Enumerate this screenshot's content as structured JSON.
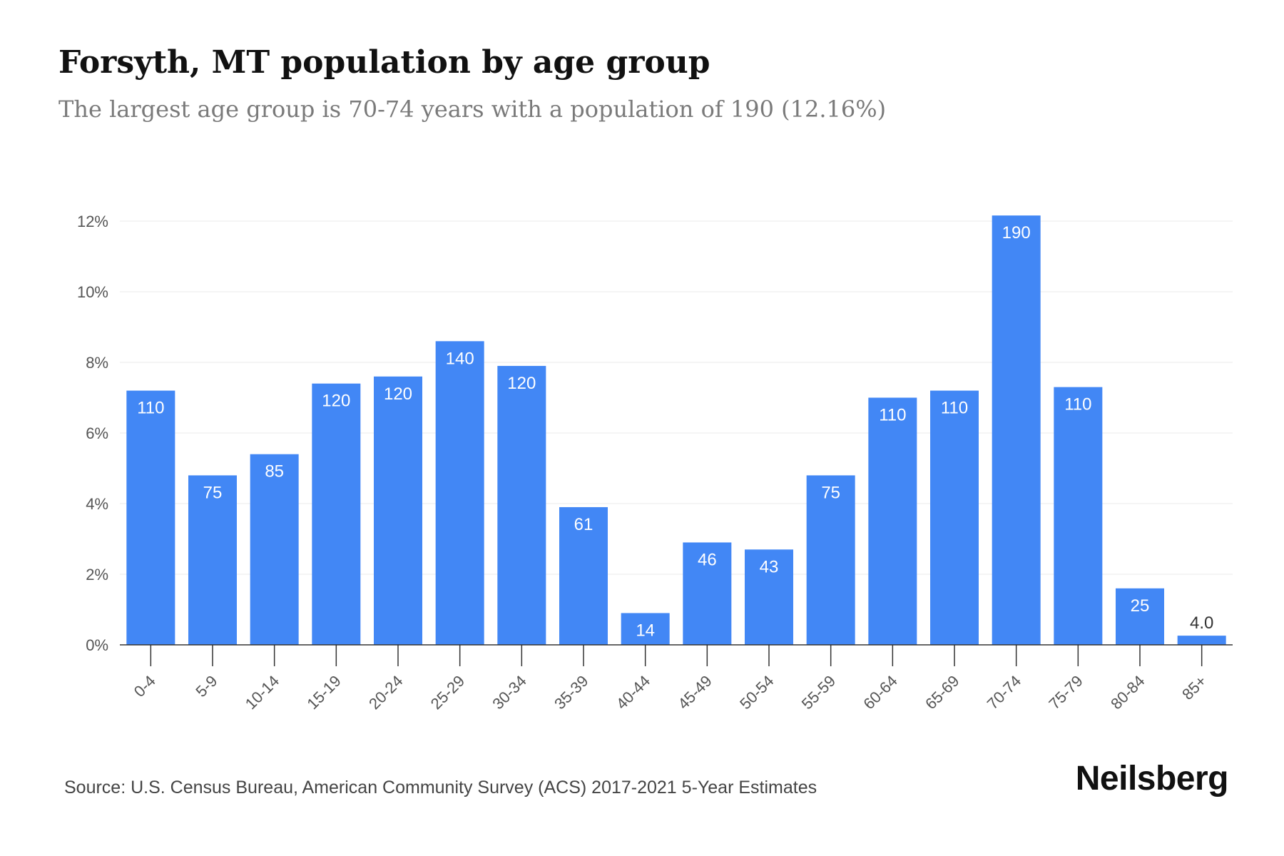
{
  "header": {
    "title": "Forsyth, MT population by age group",
    "subtitle": "The largest age group is 70-74 years with a population of 190 (12.16%)"
  },
  "footer": {
    "source": "Source: U.S. Census Bureau, American Community Survey (ACS) 2017-2021 5-Year Estimates",
    "logo": "Neilsberg"
  },
  "colors": {
    "bar": "#4287f5",
    "grid": "#ebebeb",
    "axis": "#333333",
    "label_inside": "#ffffff",
    "label_outside": "#333333"
  },
  "chart_data": {
    "type": "bar",
    "categories": [
      "0-4",
      "5-9",
      "10-14",
      "15-19",
      "20-24",
      "25-29",
      "30-34",
      "35-39",
      "40-44",
      "45-49",
      "50-54",
      "55-59",
      "60-64",
      "65-69",
      "70-74",
      "75-79",
      "80-84",
      "85+"
    ],
    "values": [
      7.2,
      4.8,
      5.4,
      7.4,
      7.6,
      8.6,
      7.9,
      3.9,
      0.9,
      2.9,
      2.7,
      4.8,
      7.0,
      7.2,
      12.16,
      7.3,
      1.6,
      0.26
    ],
    "data_labels": [
      "110",
      "75",
      "85",
      "120",
      "120",
      "140",
      "120",
      "61",
      "14",
      "46",
      "43",
      "75",
      "110",
      "110",
      "190",
      "110",
      "25",
      "4.0"
    ],
    "y_ticks": [
      "0%",
      "2%",
      "4%",
      "6%",
      "8%",
      "10%",
      "12%"
    ],
    "y_tick_values": [
      0,
      2,
      4,
      6,
      8,
      10,
      12
    ],
    "ylim": [
      0,
      12.2
    ],
    "ylabel_unit": "%",
    "xlabel": "",
    "ylabel": "",
    "grid": true,
    "legend": "none"
  }
}
